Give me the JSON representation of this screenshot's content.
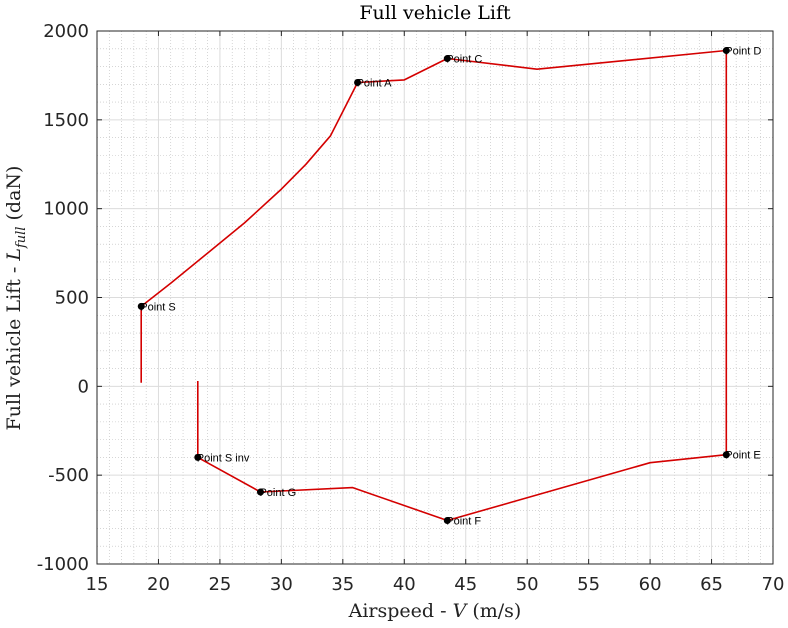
{
  "chart_data": {
    "type": "line",
    "title": "Full vehicle Lift",
    "xlabel": "Airspeed - V (m/s)",
    "ylabel": "Full vehicle Lift - L_full (daN)",
    "xlabel_parts": {
      "pre": "Airspeed - ",
      "var": "V",
      "post": " (m/s)"
    },
    "ylabel_parts": {
      "pre": "Full vehicle Lift - ",
      "var": "L",
      "sub": "full",
      "post": " (daN)"
    },
    "xlim": [
      15,
      70
    ],
    "ylim": [
      -1000,
      2000
    ],
    "xticks": [
      15,
      20,
      25,
      30,
      35,
      40,
      45,
      50,
      55,
      60,
      65,
      70
    ],
    "yticks": [
      -1000,
      -500,
      0,
      500,
      1000,
      1500,
      2000
    ],
    "grid": true,
    "minor_grid": true,
    "line_color": "#d40000",
    "marker_color": "#000000",
    "series": [
      {
        "values": [
          [
            18.6,
            20
          ],
          [
            18.6,
            450
          ],
          [
            21.0,
            580
          ],
          [
            24.0,
            750
          ],
          [
            27.0,
            920
          ],
          [
            30.0,
            1110
          ],
          [
            32.0,
            1250
          ],
          [
            34.0,
            1410
          ],
          [
            36.2,
            1710
          ],
          [
            40.0,
            1725
          ],
          [
            43.5,
            1845
          ],
          [
            50.8,
            1785
          ],
          [
            66.2,
            1890
          ],
          [
            66.2,
            -385
          ],
          [
            60.0,
            -430
          ],
          [
            43.5,
            -755
          ],
          [
            35.8,
            -570
          ],
          [
            28.3,
            -595
          ],
          [
            23.2,
            -400
          ],
          [
            23.2,
            30
          ]
        ]
      }
    ],
    "points": [
      {
        "label": "Point S",
        "x": 18.6,
        "y": 450
      },
      {
        "label": "Point A",
        "x": 36.2,
        "y": 1710
      },
      {
        "label": "Point C",
        "x": 43.5,
        "y": 1845
      },
      {
        "label": "Point D",
        "x": 66.2,
        "y": 1890
      },
      {
        "label": "Point E",
        "x": 66.2,
        "y": -385
      },
      {
        "label": "Point F",
        "x": 43.5,
        "y": -755
      },
      {
        "label": "Point G",
        "x": 28.3,
        "y": -595
      },
      {
        "label": "Point S inv",
        "x": 23.2,
        "y": -400
      }
    ]
  }
}
